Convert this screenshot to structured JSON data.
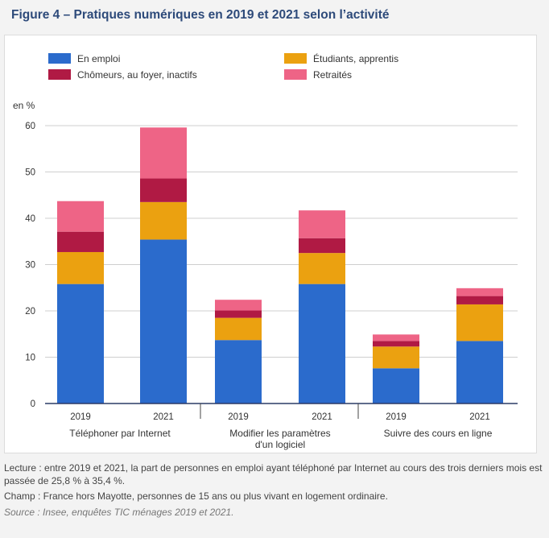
{
  "figure": {
    "title": "Figure 4 – Pratiques numériques en 2019 et 2021 selon l’activité"
  },
  "chart_data": {
    "type": "bar",
    "stacked": true,
    "ylabel": "en %",
    "ylim": [
      0,
      60
    ],
    "yticks": [
      0,
      10,
      20,
      30,
      40,
      50,
      60
    ],
    "grid": true,
    "legend_position": "top",
    "groups": [
      {
        "label": "Téléphoner par Internet",
        "label_lines": [
          "Téléphoner par Internet"
        ]
      },
      {
        "label": "Modifier les paramètres d'un logiciel",
        "label_lines": [
          "Modifier les paramètres",
          "d'un logiciel"
        ]
      },
      {
        "label": "Suivre des cours en ligne",
        "label_lines": [
          "Suivre des cours en ligne"
        ]
      }
    ],
    "years": [
      "2019",
      "2021"
    ],
    "categories": [
      "2019",
      "2021",
      "2019",
      "2021",
      "2019",
      "2021"
    ],
    "series": [
      {
        "name": "En emploi",
        "color": "#2b6bcc",
        "values": [
          25.8,
          35.4,
          13.7,
          25.8,
          7.6,
          13.5
        ]
      },
      {
        "name": "Étudiants, apprentis",
        "color": "#eba110",
        "values": [
          6.9,
          8.1,
          4.8,
          6.7,
          4.7,
          7.9
        ]
      },
      {
        "name": "Chômeurs, au foyer, inactifs",
        "color": "#b01a44",
        "values": [
          4.4,
          5.1,
          1.6,
          3.2,
          1.2,
          1.8
        ]
      },
      {
        "name": "Retraités",
        "color": "#ee6486",
        "values": [
          6.6,
          11.0,
          2.3,
          6.0,
          1.4,
          1.7
        ]
      }
    ]
  },
  "notes": {
    "lecture": "Lecture : entre 2019 et 2021, la part de personnes en emploi ayant téléphoné par Internet au cours des trois derniers mois est passée de 25,8 % à 35,4 %.",
    "champ": "Champ : France hors Mayotte, personnes de 15 ans ou plus vivant en logement ordinaire.",
    "source": "Source : Insee, enquêtes TIC ménages 2019 et 2021."
  }
}
